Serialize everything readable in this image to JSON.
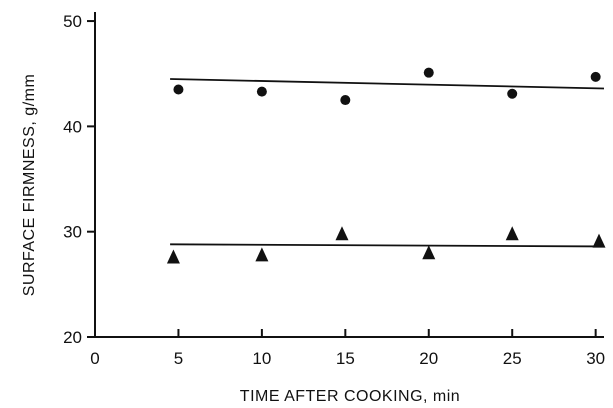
{
  "chart_data": {
    "type": "scatter",
    "title": "",
    "xlabel": "TIME AFTER COOKING, min",
    "ylabel": "SURFACE FIRMNESS, g/mm",
    "xlim": [
      0,
      30.5
    ],
    "ylim": [
      20,
      52
    ],
    "x_ticks": [
      0,
      5,
      10,
      15,
      20,
      25,
      30
    ],
    "y_ticks": [
      20,
      30,
      40,
      50
    ],
    "grid": false,
    "legend": "none",
    "series": [
      {
        "marker": "circle",
        "points": [
          {
            "x": 5,
            "y": 43.5
          },
          {
            "x": 10,
            "y": 43.3
          },
          {
            "x": 15,
            "y": 42.5
          },
          {
            "x": 20,
            "y": 45.1
          },
          {
            "x": 25,
            "y": 43.1
          },
          {
            "x": 30,
            "y": 44.7
          }
        ],
        "trendline": {
          "x": [
            4.5,
            30.5
          ],
          "y": [
            44.5,
            43.6
          ]
        }
      },
      {
        "marker": "triangle",
        "points": [
          {
            "x": 4.7,
            "y": 27.6
          },
          {
            "x": 10,
            "y": 27.8
          },
          {
            "x": 14.8,
            "y": 29.8
          },
          {
            "x": 20,
            "y": 28.0
          },
          {
            "x": 25,
            "y": 29.8
          },
          {
            "x": 30.2,
            "y": 29.1
          }
        ],
        "trendline": {
          "x": [
            4.5,
            30.5
          ],
          "y": [
            28.8,
            28.6
          ]
        }
      }
    ],
    "colors": {
      "ink": "#111111",
      "background": "#ffffff"
    }
  }
}
